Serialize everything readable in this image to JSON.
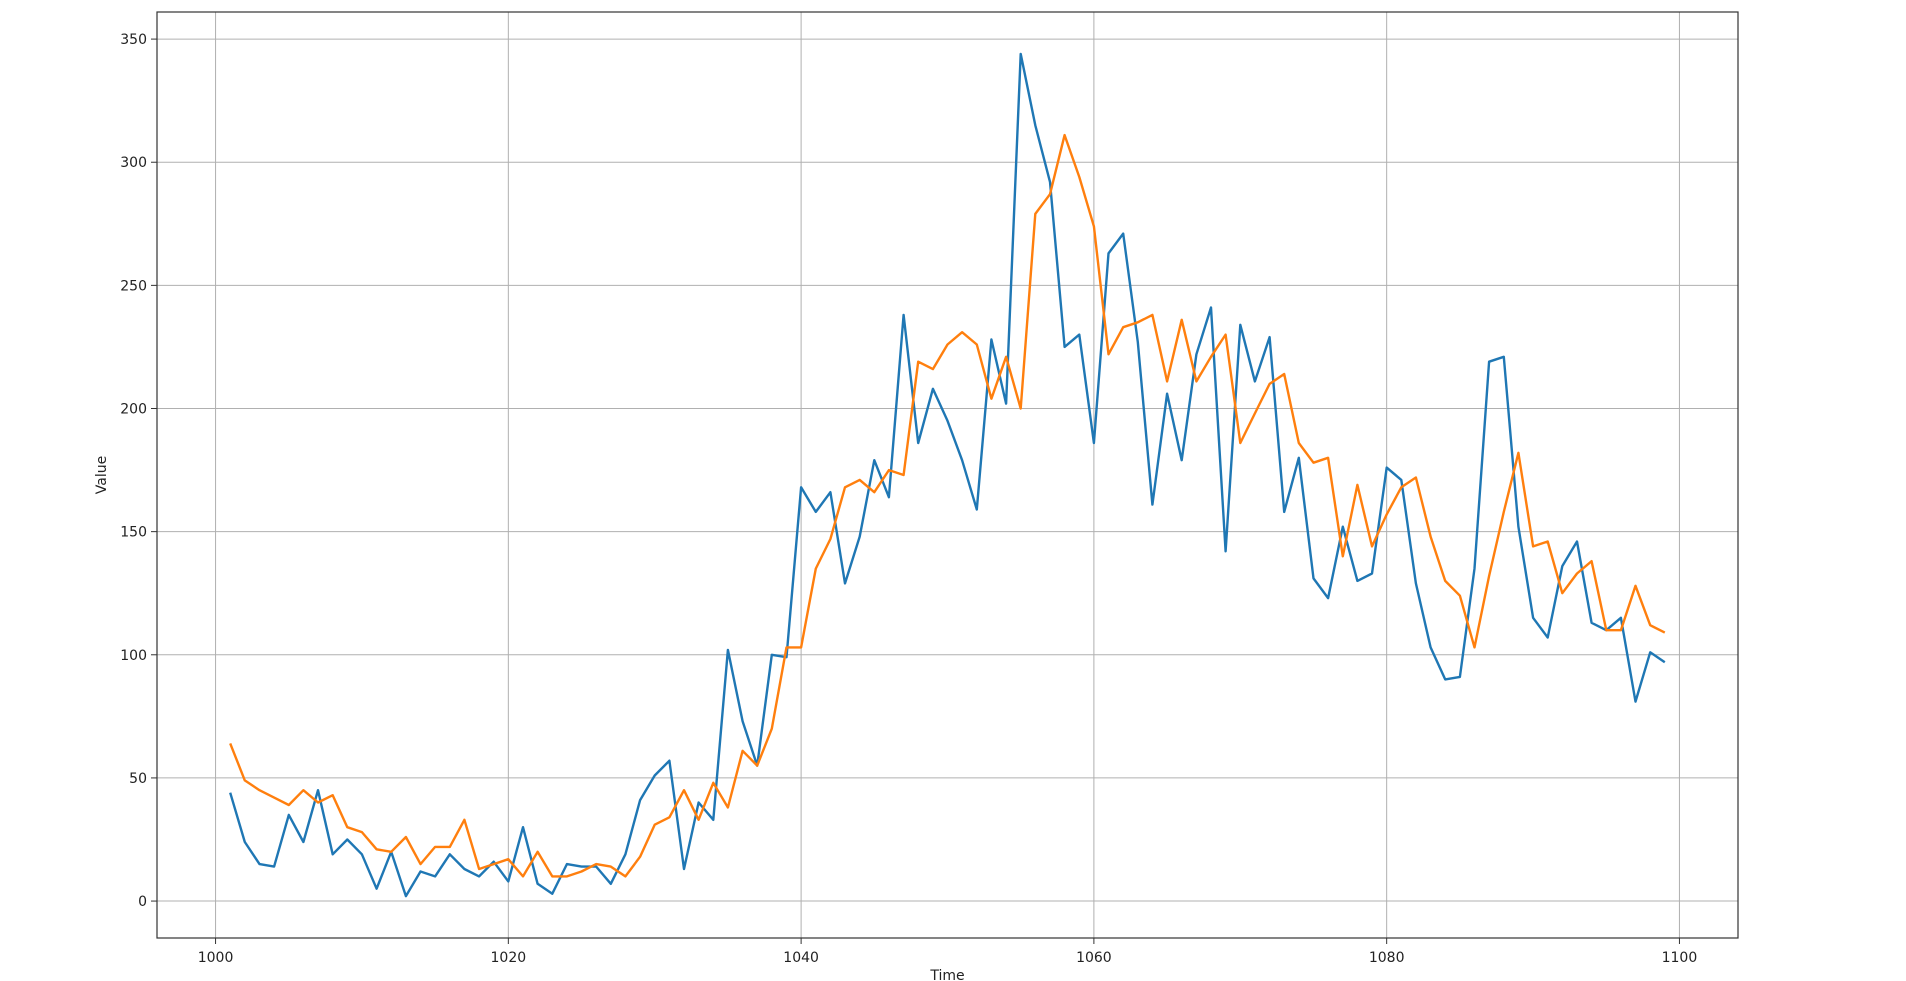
{
  "chart_data": {
    "type": "line",
    "title": "",
    "xlabel": "Time",
    "ylabel": "Value",
    "xlim": [
      996,
      1104
    ],
    "ylim": [
      -15,
      361
    ],
    "xticks": [
      1000,
      1020,
      1040,
      1060,
      1080,
      1100
    ],
    "yticks": [
      0,
      50,
      100,
      150,
      200,
      250,
      300,
      350
    ],
    "grid": true,
    "legend": "none",
    "series": [
      {
        "color": "#1f77b4",
        "x": [
          1001,
          1002,
          1003,
          1004,
          1005,
          1006,
          1007,
          1008,
          1009,
          1010,
          1011,
          1012,
          1013,
          1014,
          1015,
          1016,
          1017,
          1018,
          1019,
          1020,
          1021,
          1022,
          1023,
          1024,
          1025,
          1026,
          1027,
          1028,
          1029,
          1030,
          1031,
          1032,
          1033,
          1034,
          1035,
          1036,
          1037,
          1038,
          1039,
          1040,
          1041,
          1042,
          1043,
          1044,
          1045,
          1046,
          1047,
          1048,
          1049,
          1050,
          1051,
          1052,
          1053,
          1054,
          1055,
          1056,
          1057,
          1058,
          1059,
          1060,
          1061,
          1062,
          1063,
          1064,
          1065,
          1066,
          1067,
          1068,
          1069,
          1070,
          1071,
          1072,
          1073,
          1074,
          1075,
          1076,
          1077,
          1078,
          1079,
          1080,
          1081,
          1082,
          1083,
          1084,
          1085,
          1086,
          1087,
          1088,
          1089,
          1090,
          1091,
          1092,
          1093,
          1094,
          1095,
          1096,
          1097,
          1098,
          1099
        ],
        "y": [
          44,
          24,
          15,
          14,
          35,
          24,
          45,
          19,
          25,
          19,
          5,
          20,
          2,
          12,
          10,
          19,
          13,
          10,
          16,
          8,
          30,
          7,
          3,
          15,
          14,
          14,
          7,
          19,
          41,
          51,
          57,
          13,
          40,
          33,
          102,
          73,
          55,
          100,
          99,
          168,
          158,
          166,
          129,
          148,
          179,
          164,
          238,
          186,
          208,
          195,
          179,
          159,
          228,
          202,
          344,
          315,
          292,
          225,
          230,
          186,
          263,
          271,
          227,
          161,
          206,
          179,
          222,
          241,
          142,
          234,
          211,
          229,
          158,
          180,
          131,
          123,
          152,
          130,
          133,
          176,
          171,
          129,
          103,
          90,
          91,
          135,
          219,
          221,
          152,
          115,
          107,
          136,
          146,
          113,
          110,
          115,
          81,
          101,
          97
        ]
      },
      {
        "color": "#ff7f0e",
        "x": [
          1001,
          1002,
          1003,
          1004,
          1005,
          1006,
          1007,
          1008,
          1009,
          1010,
          1011,
          1012,
          1013,
          1014,
          1015,
          1016,
          1017,
          1018,
          1019,
          1020,
          1021,
          1022,
          1023,
          1024,
          1025,
          1026,
          1027,
          1028,
          1029,
          1030,
          1031,
          1032,
          1033,
          1034,
          1035,
          1036,
          1037,
          1038,
          1039,
          1040,
          1041,
          1042,
          1043,
          1044,
          1045,
          1046,
          1047,
          1048,
          1049,
          1050,
          1051,
          1052,
          1053,
          1054,
          1055,
          1056,
          1057,
          1058,
          1059,
          1060,
          1061,
          1062,
          1063,
          1064,
          1065,
          1066,
          1067,
          1068,
          1069,
          1070,
          1071,
          1072,
          1073,
          1074,
          1075,
          1076,
          1077,
          1078,
          1079,
          1080,
          1081,
          1082,
          1083,
          1084,
          1085,
          1086,
          1087,
          1088,
          1089,
          1090,
          1091,
          1092,
          1093,
          1094,
          1095,
          1096,
          1097,
          1098,
          1099
        ],
        "y": [
          64,
          49,
          45,
          42,
          39,
          45,
          40,
          43,
          30,
          28,
          21,
          20,
          26,
          15,
          22,
          22,
          33,
          13,
          15,
          17,
          10,
          20,
          10,
          10,
          12,
          15,
          14,
          10,
          18,
          31,
          34,
          45,
          33,
          48,
          38,
          61,
          55,
          70,
          103,
          103,
          135,
          147,
          168,
          171,
          166,
          175,
          173,
          219,
          216,
          226,
          231,
          226,
          204,
          221,
          200,
          279,
          287,
          311,
          294,
          274,
          222,
          233,
          235,
          238,
          211,
          236,
          211,
          221,
          230,
          186,
          198,
          210,
          214,
          186,
          178,
          180,
          140,
          169,
          144,
          157,
          168,
          172,
          148,
          130,
          124,
          103,
          132,
          158,
          182,
          144,
          146,
          125,
          133,
          138,
          110,
          110,
          128,
          112,
          109
        ]
      }
    ]
  }
}
